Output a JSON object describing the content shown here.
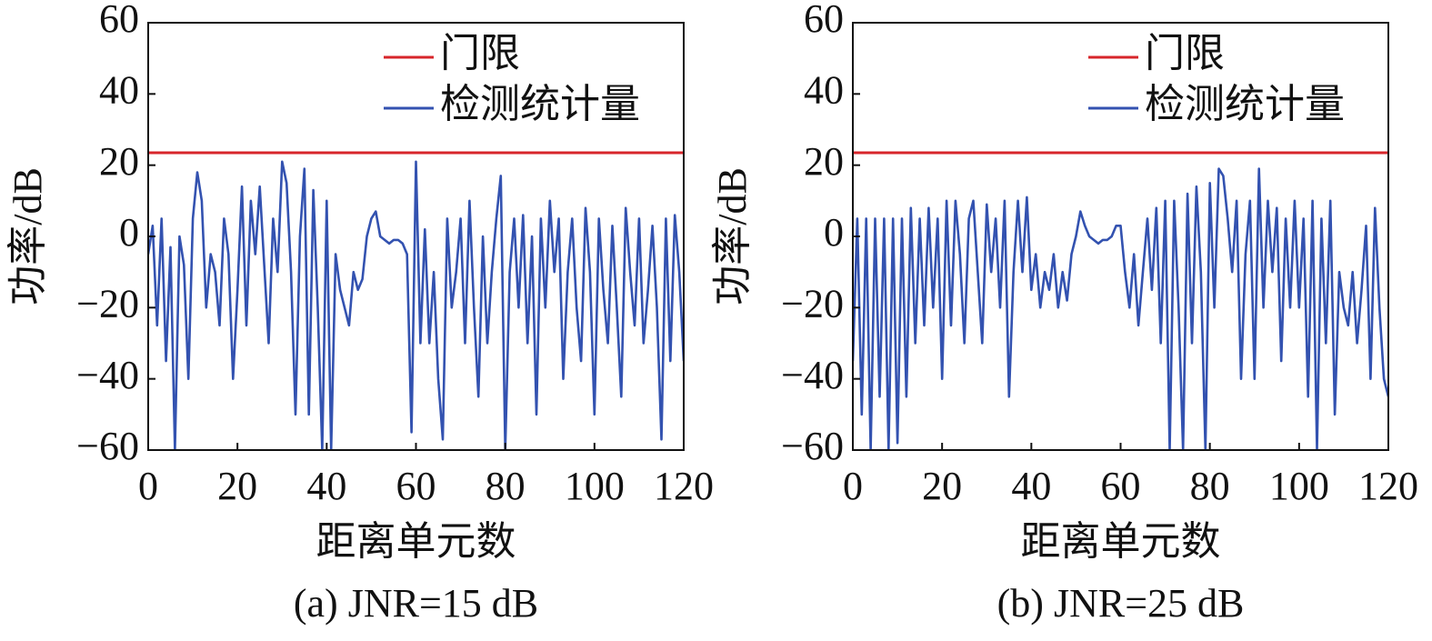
{
  "chart_data": [
    {
      "type": "line",
      "caption": "(a) JNR=15 dB",
      "x_label": "距离单元数",
      "y_label": "功率/dB",
      "xlim": [
        0,
        120
      ],
      "ylim": [
        -60,
        60
      ],
      "xticks": [
        0,
        20,
        40,
        60,
        80,
        100,
        120
      ],
      "yticks": [
        {
          "value": -60,
          "label": "−60"
        },
        {
          "value": -40,
          "label": "−40"
        },
        {
          "value": -20,
          "label": "−20"
        },
        0,
        20,
        40,
        60
      ],
      "legend": "upper right",
      "x": [
        0,
        1,
        2,
        3,
        4,
        5,
        6,
        7,
        8,
        9,
        10,
        11,
        12,
        13,
        14,
        15,
        16,
        17,
        18,
        19,
        20,
        21,
        22,
        23,
        24,
        25,
        26,
        27,
        28,
        29,
        30,
        31,
        32,
        33,
        34,
        35,
        36,
        37,
        38,
        39,
        40,
        41,
        42,
        43,
        44,
        45,
        46,
        47,
        48,
        49,
        50,
        51,
        52,
        53,
        54,
        55,
        56,
        57,
        58,
        59,
        60,
        61,
        62,
        63,
        64,
        65,
        66,
        67,
        68,
        69,
        70,
        71,
        72,
        73,
        74,
        75,
        76,
        77,
        78,
        79,
        80,
        81,
        82,
        83,
        84,
        85,
        86,
        87,
        88,
        89,
        90,
        91,
        92,
        93,
        94,
        95,
        96,
        97,
        98,
        99,
        100,
        101,
        102,
        103,
        104,
        105,
        106,
        107,
        108,
        109,
        110,
        111,
        112,
        113,
        114,
        115,
        116,
        117,
        118,
        119,
        120
      ],
      "series": [
        {
          "name": "门限",
          "color": "#d7262b",
          "x": [
            0,
            120
          ],
          "values": [
            23.5,
            23.5
          ]
        },
        {
          "name": "检测统计量",
          "color": "#3352b0",
          "values": [
            -5,
            3,
            -25,
            5,
            -35,
            -3,
            -60,
            0,
            -8,
            -40,
            5,
            18,
            10,
            -20,
            -5,
            -10,
            -25,
            5,
            -5,
            -40,
            -15,
            14,
            -25,
            10,
            -5,
            14,
            -8,
            -30,
            5,
            -10,
            21,
            15,
            -10,
            -50,
            0,
            19,
            -50,
            13,
            -20,
            -60,
            10,
            -60,
            -5,
            -15,
            -20,
            -25,
            -10,
            -15,
            -12,
            0,
            5,
            7,
            0,
            -1,
            -2,
            -1,
            -1,
            -2,
            -5,
            -55,
            21,
            -30,
            2,
            -30,
            -10,
            -40,
            -57,
            5,
            -20,
            -10,
            5,
            -30,
            10,
            -20,
            -45,
            0,
            -30,
            -10,
            5,
            17,
            -60,
            -10,
            5,
            -20,
            6,
            -30,
            0,
            -50,
            5,
            -20,
            10,
            -10,
            5,
            -40,
            -10,
            5,
            -20,
            -35,
            8,
            -10,
            -50,
            5,
            -15,
            -30,
            3,
            -20,
            -45,
            8,
            -10,
            -25,
            5,
            -30,
            -15,
            3,
            -20,
            -57,
            5,
            -35,
            6,
            -10,
            -35
          ]
        }
      ]
    },
    {
      "type": "line",
      "caption": "(b) JNR=25 dB",
      "x_label": "距离单元数",
      "y_label": "功率/dB",
      "xlim": [
        0,
        120
      ],
      "ylim": [
        -60,
        60
      ],
      "xticks": [
        0,
        20,
        40,
        60,
        80,
        100,
        120
      ],
      "yticks": [
        {
          "value": -60,
          "label": "−60"
        },
        {
          "value": -40,
          "label": "−40"
        },
        {
          "value": -20,
          "label": "−20"
        },
        0,
        20,
        40,
        60
      ],
      "legend": "upper right",
      "x": [
        0,
        1,
        2,
        3,
        4,
        5,
        6,
        7,
        8,
        9,
        10,
        11,
        12,
        13,
        14,
        15,
        16,
        17,
        18,
        19,
        20,
        21,
        22,
        23,
        24,
        25,
        26,
        27,
        28,
        29,
        30,
        31,
        32,
        33,
        34,
        35,
        36,
        37,
        38,
        39,
        40,
        41,
        42,
        43,
        44,
        45,
        46,
        47,
        48,
        49,
        50,
        51,
        52,
        53,
        54,
        55,
        56,
        57,
        58,
        59,
        60,
        61,
        62,
        63,
        64,
        65,
        66,
        67,
        68,
        69,
        70,
        71,
        72,
        73,
        74,
        75,
        76,
        77,
        78,
        79,
        80,
        81,
        82,
        83,
        84,
        85,
        86,
        87,
        88,
        89,
        90,
        91,
        92,
        93,
        94,
        95,
        96,
        97,
        98,
        99,
        100,
        101,
        102,
        103,
        104,
        105,
        106,
        107,
        108,
        109,
        110,
        111,
        112,
        113,
        114,
        115,
        116,
        117,
        118,
        119,
        120
      ],
      "series": [
        {
          "name": "门限",
          "color": "#d7262b",
          "x": [
            0,
            120
          ],
          "values": [
            23.5,
            23.5
          ]
        },
        {
          "name": "检测统计量",
          "color": "#3352b0",
          "values": [
            -35,
            5,
            -50,
            5,
            -60,
            5,
            -45,
            5,
            -60,
            5,
            -58,
            5,
            -45,
            8,
            -30,
            5,
            -25,
            8,
            -20,
            5,
            -40,
            10,
            -25,
            10,
            -5,
            -30,
            5,
            10,
            -10,
            -30,
            9,
            -10,
            5,
            -20,
            10,
            -45,
            -10,
            10,
            -10,
            11,
            -15,
            -5,
            -20,
            -10,
            -15,
            -5,
            -20,
            -10,
            -18,
            -5,
            0,
            7,
            3,
            0,
            -1,
            -2,
            -1,
            -1,
            0,
            3,
            3,
            -10,
            -20,
            -5,
            -25,
            -10,
            5,
            -15,
            8,
            -30,
            10,
            -60,
            10,
            -20,
            -60,
            12,
            -30,
            14,
            -10,
            -60,
            15,
            -20,
            19,
            17,
            5,
            -10,
            10,
            -40,
            -5,
            10,
            -40,
            19,
            -20,
            10,
            -10,
            8,
            -35,
            5,
            -20,
            10,
            -20,
            5,
            -45,
            10,
            -60,
            5,
            -30,
            10,
            -50,
            -10,
            -20,
            -25,
            -10,
            -30,
            -15,
            3,
            -40,
            8,
            -20,
            -40,
            -45
          ]
        }
      ]
    }
  ]
}
